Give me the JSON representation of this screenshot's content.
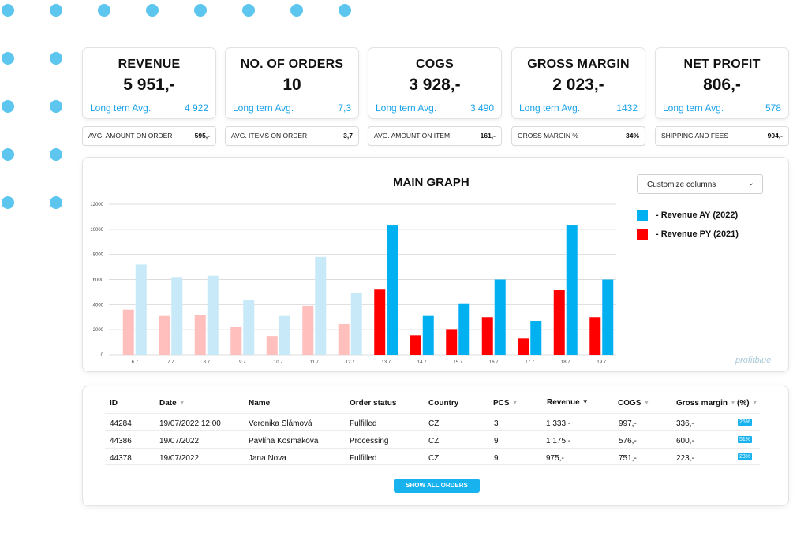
{
  "kpis": [
    {
      "title": "REVENUE",
      "value": "5 951,-",
      "avg_label": "Long tern Avg.",
      "avg_value": "4 922"
    },
    {
      "title": "NO. OF ORDERS",
      "value": "10",
      "avg_label": "Long tern Avg.",
      "avg_value": "7,3"
    },
    {
      "title": "COGS",
      "value": "3 928,-",
      "avg_label": "Long tern Avg.",
      "avg_value": "3 490"
    },
    {
      "title": "GROSS MARGIN",
      "value": "2 023,-",
      "avg_label": "Long tern Avg.",
      "avg_value": "1432"
    },
    {
      "title": "NET PROFIT",
      "value": "806,-",
      "avg_label": "Long tern Avg.",
      "avg_value": "578"
    }
  ],
  "sub_stats": [
    {
      "label": "AVG. AMOUNT ON ORDER",
      "value": "595,-"
    },
    {
      "label": "AVG. ITEMS ON ORDER",
      "value": "3,7"
    },
    {
      "label": "AVG. AMOUNT ON ITEM",
      "value": "161,-"
    },
    {
      "label": "GROSS MARGIN %",
      "value": "34%"
    },
    {
      "label": "SHIPPING AND FEES",
      "value": "904,-"
    }
  ],
  "graph": {
    "title": "MAIN GRAPH",
    "customize_label": "Customize columns",
    "watermark": "profitblue"
  },
  "colors": {
    "ay": "#00b0f0",
    "ay_faded": "#c8e9f8",
    "py": "#ff0000",
    "py_faded": "#ffc0bd",
    "accent": "#18b2ef"
  },
  "chart_data": {
    "type": "bar",
    "title": "MAIN GRAPH",
    "categories": [
      "6.7",
      "7.7",
      "8.7",
      "9.7",
      "10.7",
      "11.7",
      "12.7",
      "13.7",
      "14.7",
      "15.7",
      "16.7",
      "17.7",
      "18.7",
      "19.7"
    ],
    "series": [
      {
        "name": "- Revenue AY (2022)",
        "values": [
          7200,
          6200,
          6300,
          4400,
          3100,
          7800,
          4900,
          10300,
          3100,
          4100,
          6000,
          2700,
          10300,
          6000
        ]
      },
      {
        "name": "- Revenue PY (2021)",
        "values": [
          3600,
          3100,
          3200,
          2200,
          1500,
          3900,
          2450,
          5200,
          1550,
          2050,
          3000,
          1300,
          5150,
          3000
        ]
      }
    ],
    "faded_categories": 7,
    "ylim": [
      0,
      12000
    ],
    "yticks": [
      "0",
      "2000",
      "4000",
      "6000",
      "8000",
      "10000",
      "12000"
    ],
    "grid": true,
    "legend_position": "right"
  },
  "table": {
    "headers": [
      "ID",
      "Date",
      "Name",
      "Order status",
      "Country",
      "PCS",
      "Revenue",
      "COGS",
      "Gross margin",
      "(%)"
    ],
    "rows": [
      {
        "id": "44284",
        "date": "19/07/2022 12:00",
        "name": "Veronika Slámová",
        "status": "Fulfilled",
        "country": "CZ",
        "pcs": "3",
        "revenue": "1 333,-",
        "cogs": "997,-",
        "margin": "336,-",
        "pct": "25%"
      },
      {
        "id": "44386",
        "date": "19/07/2022",
        "name": "Pavlína Kosmakova",
        "status": "Processing",
        "country": "CZ",
        "pcs": "9",
        "revenue": "1 175,-",
        "cogs": "576,-",
        "margin": "600,-",
        "pct": "51%"
      },
      {
        "id": "44378",
        "date": "19/07/2022",
        "name": "Jana Nova",
        "status": "Fulfilled",
        "country": "CZ",
        "pcs": "9",
        "revenue": "975,-",
        "cogs": "751,-",
        "margin": "223,-",
        "pct": "23%"
      }
    ],
    "show_all_label": "SHOW ALL ORDERS"
  }
}
